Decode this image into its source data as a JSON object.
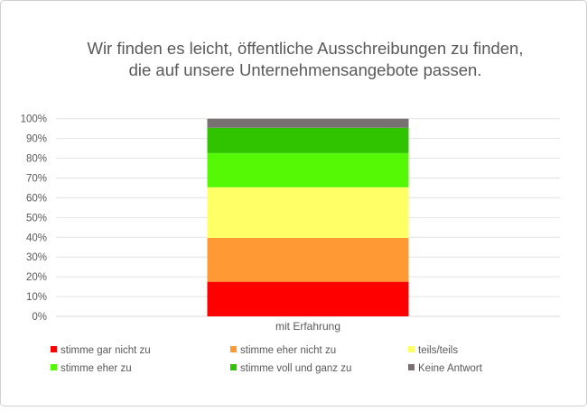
{
  "chart_data": {
    "type": "bar",
    "stacked": true,
    "title_lines": [
      "Wir finden es leicht, öffentliche Ausschreibungen zu finden,",
      "die auf unsere Unternehmensangebote passen."
    ],
    "categories": [
      "mit Erfahrung"
    ],
    "ylim": [
      0,
      100
    ],
    "yticks": [
      "0%",
      "10%",
      "20%",
      "30%",
      "40%",
      "50%",
      "60%",
      "70%",
      "80%",
      "90%",
      "100%"
    ],
    "grid": true,
    "legend_position": "bottom",
    "series": [
      {
        "name": "stimme gar nicht zu",
        "color": "#ff0000",
        "values": [
          17.5
        ]
      },
      {
        "name": "stimme eher nicht zu",
        "color": "#ff9933",
        "values": [
          22.2
        ]
      },
      {
        "name": "teils/teils",
        "color": "#ffff66",
        "values": [
          25.6
        ]
      },
      {
        "name": "stimme eher zu",
        "color": "#55f805",
        "values": [
          17.3
        ]
      },
      {
        "name": "stimme voll und ganz zu",
        "color": "#2fc300",
        "values": [
          12.8
        ]
      },
      {
        "name": "Keine Antwort",
        "color": "#777171",
        "values": [
          4.6
        ]
      }
    ]
  }
}
